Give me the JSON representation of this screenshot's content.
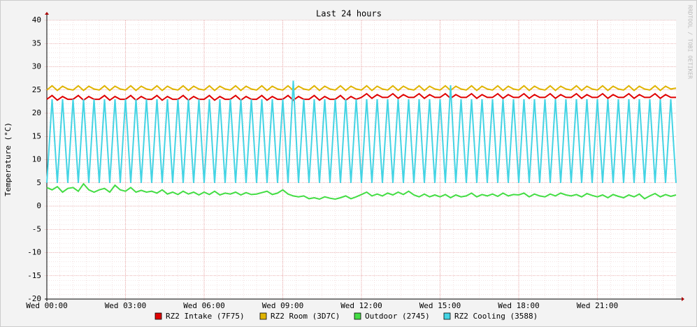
{
  "chart_data": {
    "type": "line",
    "title": "Last 24 hours",
    "y_label": "Temperature (°C)",
    "watermark": "RRDTOOL / TOBI OETIKER",
    "grid": true,
    "xlim": [
      0,
      24
    ],
    "xticks": [
      {
        "value": 0,
        "label": "Wed 00:00"
      },
      {
        "value": 3,
        "label": "Wed 03:00"
      },
      {
        "value": 6,
        "label": "Wed 06:00"
      },
      {
        "value": 9,
        "label": "Wed 09:00"
      },
      {
        "value": 12,
        "label": "Wed 12:00"
      },
      {
        "value": 15,
        "label": "Wed 15:00"
      },
      {
        "value": 18,
        "label": "Wed 18:00"
      },
      {
        "value": 21,
        "label": "Wed 21:00"
      }
    ],
    "ylim": [
      -20,
      40
    ],
    "yticks": [
      -20,
      -15,
      -10,
      -5,
      0,
      5,
      10,
      15,
      20,
      25,
      30,
      35,
      40
    ],
    "x": [
      0,
      0.2,
      0.4,
      0.6,
      0.8,
      1,
      1.2,
      1.4,
      1.6,
      1.8,
      2,
      2.2,
      2.4,
      2.6,
      2.8,
      3,
      3.2,
      3.4,
      3.6,
      3.8,
      4,
      4.2,
      4.4,
      4.6,
      4.8,
      5,
      5.2,
      5.4,
      5.6,
      5.8,
      6,
      6.2,
      6.4,
      6.6,
      6.8,
      7,
      7.2,
      7.4,
      7.6,
      7.8,
      8,
      8.2,
      8.4,
      8.6,
      8.8,
      9,
      9.2,
      9.4,
      9.6,
      9.8,
      10,
      10.2,
      10.4,
      10.6,
      10.8,
      11,
      11.2,
      11.4,
      11.6,
      11.8,
      12,
      12.2,
      12.4,
      12.6,
      12.8,
      13,
      13.2,
      13.4,
      13.6,
      13.8,
      14,
      14.2,
      14.4,
      14.6,
      14.8,
      15,
      15.2,
      15.4,
      15.6,
      15.8,
      16,
      16.2,
      16.4,
      16.6,
      16.8,
      17,
      17.2,
      17.4,
      17.6,
      17.8,
      18,
      18.2,
      18.4,
      18.6,
      18.8,
      19,
      19.2,
      19.4,
      19.6,
      19.8,
      20,
      20.2,
      20.4,
      20.6,
      20.8,
      21,
      21.2,
      21.4,
      21.6,
      21.8,
      22,
      22.2,
      22.4,
      22.6,
      22.8,
      23,
      23.2,
      23.4,
      23.6,
      23.8,
      24
    ],
    "series": [
      {
        "name": "RZ2 Intake (7F75)",
        "color": "#e00000",
        "values": [
          23,
          23.8,
          22.8,
          23.6,
          23,
          23,
          23.8,
          22.8,
          23.6,
          23,
          23,
          23.8,
          22.8,
          23.6,
          23,
          23,
          23.8,
          22.8,
          23.6,
          23,
          23,
          23.8,
          22.8,
          23.6,
          23,
          23,
          23.8,
          22.8,
          23.6,
          23,
          23,
          23.8,
          22.8,
          23.6,
          23,
          23,
          23.8,
          22.8,
          23.6,
          23,
          23,
          23.8,
          22.8,
          23.6,
          23,
          23,
          23.8,
          22.8,
          23.6,
          23,
          23,
          23.8,
          22.8,
          23.6,
          23,
          23,
          23.8,
          22.8,
          23.6,
          23,
          23.4,
          24.2,
          23.2,
          24,
          23.4,
          23.4,
          24.2,
          23.2,
          24,
          23.4,
          23.4,
          24.2,
          23.2,
          24,
          23.4,
          23.4,
          24.2,
          23.2,
          24,
          23.4,
          23.4,
          24.2,
          23.2,
          24,
          23.4,
          23.4,
          24.2,
          23.2,
          24,
          23.4,
          23.4,
          24.2,
          23.2,
          24,
          23.4,
          23.4,
          24.2,
          23.2,
          24,
          23.4,
          23.4,
          24.2,
          23.2,
          24,
          23.4,
          23.4,
          24.2,
          23.2,
          24,
          23.4,
          23.4,
          24.2,
          23.2,
          24,
          23.4,
          23.4,
          24.2,
          23.2,
          24,
          23.4,
          23.4
        ]
      },
      {
        "name": "RZ2 Room (3D7C)",
        "color": "#e0b400",
        "values": [
          25,
          25.9,
          24.9,
          25.8,
          25.2,
          25,
          25.9,
          24.9,
          25.8,
          25.2,
          25,
          25.9,
          24.9,
          25.8,
          25.2,
          25,
          25.9,
          24.9,
          25.8,
          25.2,
          25,
          25.9,
          24.9,
          25.8,
          25.2,
          25,
          25.9,
          24.9,
          25.8,
          25.2,
          25,
          25.9,
          24.9,
          25.8,
          25.2,
          25,
          25.9,
          24.9,
          25.8,
          25.2,
          25,
          25.9,
          24.9,
          25.8,
          25.2,
          25,
          25.9,
          24.9,
          25.8,
          25.2,
          25,
          25.9,
          24.9,
          25.8,
          25.2,
          25,
          25.9,
          24.9,
          25.8,
          25.2,
          25,
          25.9,
          24.9,
          25.8,
          25.2,
          25,
          25.9,
          24.9,
          25.8,
          25.2,
          25,
          25.9,
          24.9,
          25.8,
          25.2,
          25,
          25.9,
          24.9,
          25.8,
          25.2,
          25,
          25.9,
          24.9,
          25.8,
          25.2,
          25,
          25.9,
          24.9,
          25.8,
          25.2,
          25,
          25.9,
          24.9,
          25.8,
          25.2,
          25,
          25.9,
          24.9,
          25.8,
          25.2,
          25,
          25.9,
          24.9,
          25.8,
          25.2,
          25,
          25.9,
          24.9,
          25.8,
          25.2,
          25,
          25.9,
          24.9,
          25.8,
          25.2,
          25,
          25.9,
          24.9,
          25.8,
          25.2,
          25.4
        ]
      },
      {
        "name": "Outdoor (2745)",
        "color": "#44dd44",
        "values": [
          4,
          3.5,
          4.2,
          3,
          3.8,
          4,
          3.2,
          4.8,
          3.5,
          3,
          3.5,
          3.8,
          3,
          4.5,
          3.5,
          3.2,
          4,
          3,
          3.4,
          3,
          3.2,
          2.8,
          3.5,
          2.6,
          3,
          2.5,
          3.2,
          2.6,
          3,
          2.4,
          3,
          2.5,
          3.2,
          2.4,
          2.8,
          2.6,
          3,
          2.4,
          2.9,
          2.5,
          2.6,
          2.9,
          3.2,
          2.5,
          2.8,
          3.5,
          2.6,
          2.2,
          2,
          2.2,
          1.6,
          1.8,
          1.5,
          2,
          1.7,
          1.5,
          1.8,
          2.2,
          1.6,
          2,
          2.5,
          3,
          2.2,
          2.6,
          2.2,
          2.8,
          2.4,
          3,
          2.5,
          3.2,
          2.4,
          2,
          2.6,
          2,
          2.4,
          2,
          2.5,
          1.8,
          2.4,
          2,
          2.2,
          2.8,
          2,
          2.5,
          2.2,
          2.6,
          2.1,
          2.8,
          2.2,
          2.5,
          2.4,
          2.8,
          2,
          2.6,
          2.2,
          2,
          2.6,
          2.2,
          2.8,
          2.4,
          2.2,
          2.5,
          2,
          2.7,
          2.3,
          2,
          2.4,
          1.8,
          2.5,
          2.1,
          1.8,
          2.4,
          2,
          2.6,
          1.6,
          2.2,
          2.7,
          2,
          2.5,
          2.1,
          2.4
        ]
      },
      {
        "name": "RZ2 Cooling (3588)",
        "color": "#44d4e4",
        "values": [
          5,
          23,
          5,
          23,
          5,
          23,
          5,
          23,
          5,
          23,
          5,
          23,
          5,
          23,
          5,
          23,
          5,
          23,
          5,
          23,
          5,
          23,
          5,
          23,
          5,
          23,
          5,
          23,
          5,
          23,
          5,
          23,
          5,
          23,
          5,
          23,
          5,
          23,
          5,
          23,
          5,
          23,
          5,
          23,
          5,
          23,
          5,
          27,
          5,
          23,
          5,
          23,
          5,
          23,
          5,
          23,
          5,
          23,
          5,
          23,
          5,
          23,
          5,
          23,
          5,
          23,
          5,
          23,
          5,
          23,
          5,
          23,
          5,
          23,
          5,
          23,
          5,
          26,
          5,
          23,
          5,
          23,
          5,
          23,
          5,
          23,
          5,
          23,
          5,
          23,
          5,
          23,
          5,
          23,
          5,
          23,
          5,
          23,
          5,
          23,
          5,
          23,
          5,
          23,
          5,
          23,
          5,
          23,
          5,
          23,
          5,
          23,
          5,
          23,
          5,
          23,
          5,
          23,
          5,
          23,
          5
        ]
      }
    ]
  }
}
